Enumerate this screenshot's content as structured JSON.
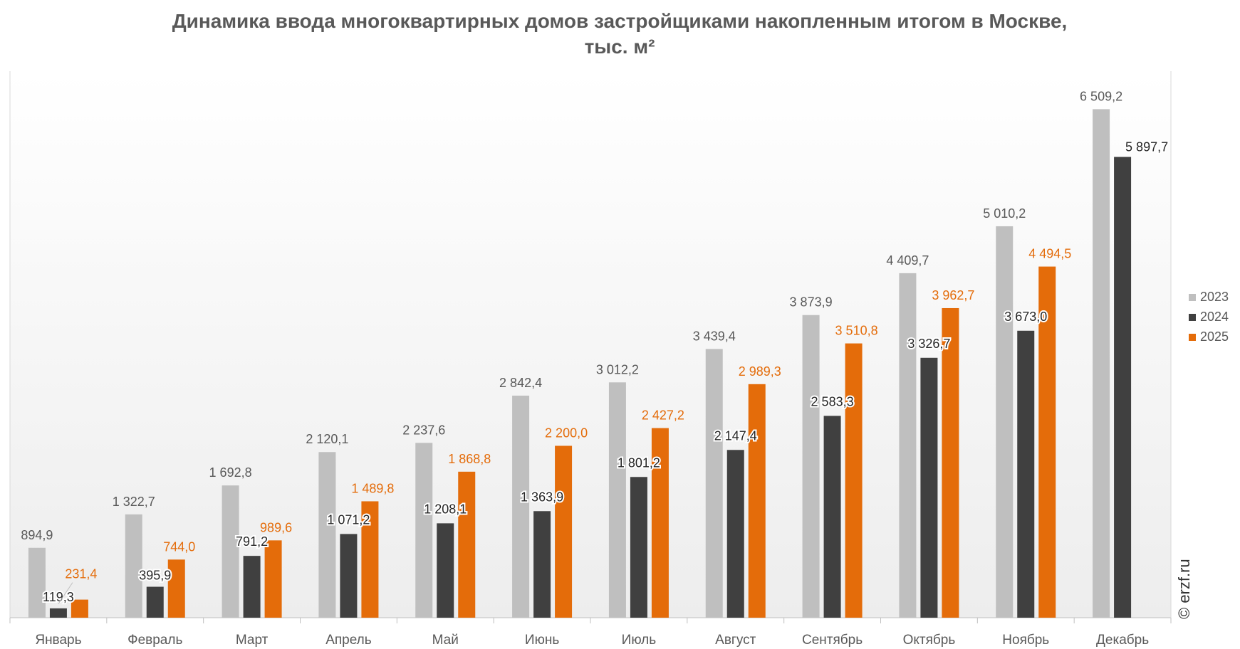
{
  "chart_data": {
    "type": "bar",
    "title": "Динамика ввода многоквартирных домов застройщиками накопленным итогом в Москве, тыс. м²",
    "categories": [
      "Январь",
      "Февраль",
      "Март",
      "Апрель",
      "Май",
      "Июнь",
      "Июль",
      "Август",
      "Сентябрь",
      "Октябрь",
      "Ноябрь",
      "Декабрь"
    ],
    "series": [
      {
        "name": "2023",
        "color": "#bfbfbf",
        "label_color": "#595959",
        "values": [
          894.9,
          1322.7,
          1692.8,
          2120.1,
          2237.6,
          2842.4,
          3012.2,
          3439.4,
          3873.9,
          4409.7,
          5010.2,
          6509.2
        ]
      },
      {
        "name": "2024",
        "color": "#404040",
        "label_color": "#262626",
        "values": [
          119.3,
          395.9,
          791.2,
          1071.2,
          1208.1,
          1363.9,
          1801.2,
          2147.4,
          2583.3,
          3326.7,
          3673.0,
          5897.7
        ]
      },
      {
        "name": "2025",
        "color": "#e46c0a",
        "label_color": "#e46c0a",
        "values": [
          231.4,
          744.0,
          989.6,
          1489.8,
          1868.8,
          2200.0,
          2427.2,
          2989.3,
          3510.8,
          3962.7,
          4494.5,
          null
        ]
      }
    ],
    "ylim": [
      0,
      7000
    ],
    "grid": false,
    "legend_position": "right",
    "number_format": "ru_1dp"
  },
  "watermark": "© erzf.ru"
}
